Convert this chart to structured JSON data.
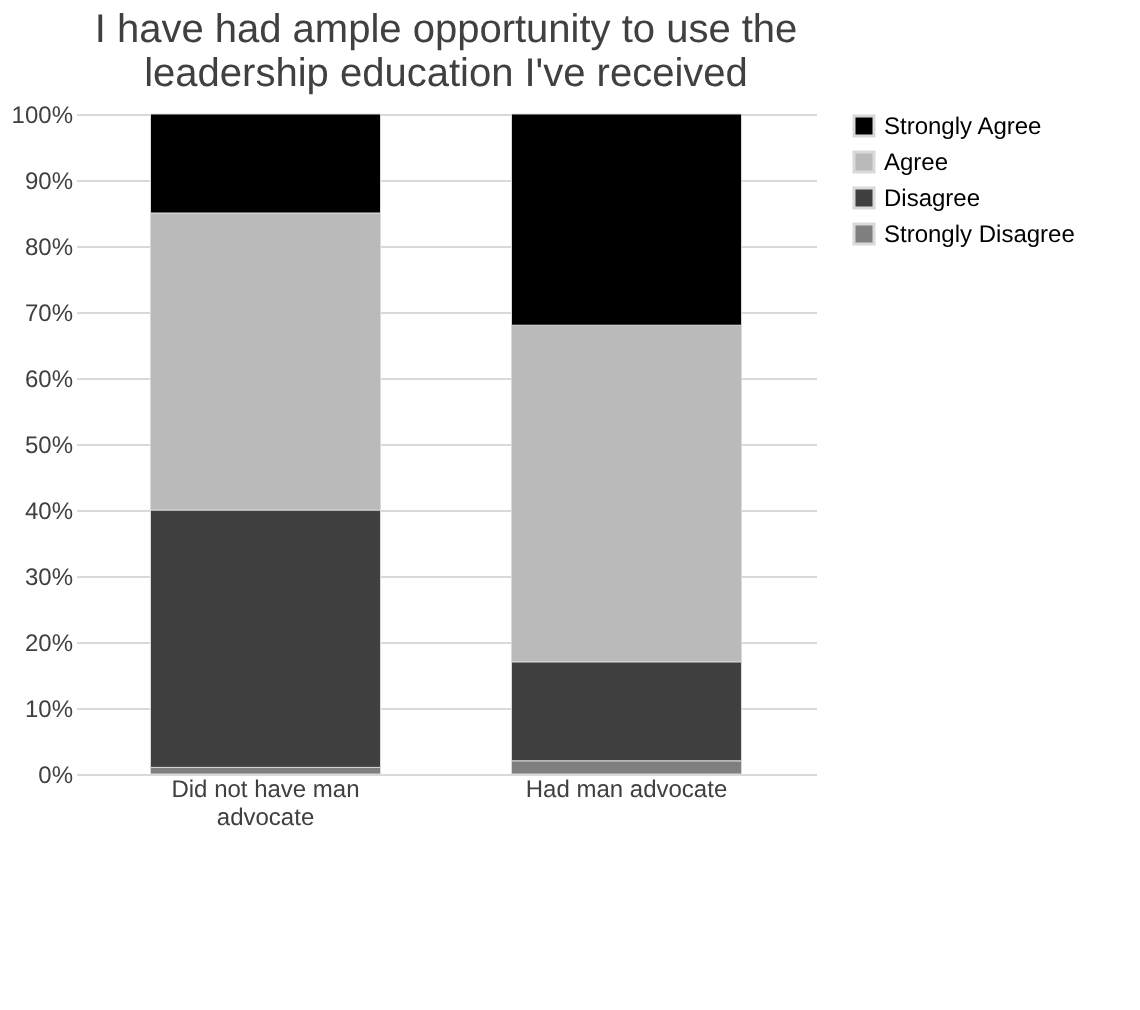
{
  "chart_data": {
    "type": "bar",
    "stacked": true,
    "title": "I have had ample opportunity to use the leadership education I've received",
    "categories": [
      "Did not have man advocate",
      "Had man advocate"
    ],
    "series": [
      {
        "name": "Strongly Disagree",
        "color": "#7f7f7f",
        "values": [
          1,
          2
        ]
      },
      {
        "name": "Disagree",
        "color": "#404040",
        "values": [
          39,
          15
        ]
      },
      {
        "name": "Agree",
        "color": "#bababa",
        "values": [
          45,
          51
        ]
      },
      {
        "name": "Strongly Agree",
        "color": "#000000",
        "values": [
          15,
          32
        ]
      }
    ],
    "ylim": [
      0,
      100
    ],
    "yticks": [
      {
        "value": 0,
        "label": "0%"
      },
      {
        "value": 10,
        "label": "10%"
      },
      {
        "value": 20,
        "label": "20%"
      },
      {
        "value": 30,
        "label": "30%"
      },
      {
        "value": 40,
        "label": "40%"
      },
      {
        "value": 50,
        "label": "50%"
      },
      {
        "value": 60,
        "label": "60%"
      },
      {
        "value": 70,
        "label": "70%"
      },
      {
        "value": 80,
        "label": "80%"
      },
      {
        "value": 90,
        "label": "90%"
      },
      {
        "value": 100,
        "label": "100%"
      }
    ],
    "grid": "y",
    "legend": "right"
  }
}
